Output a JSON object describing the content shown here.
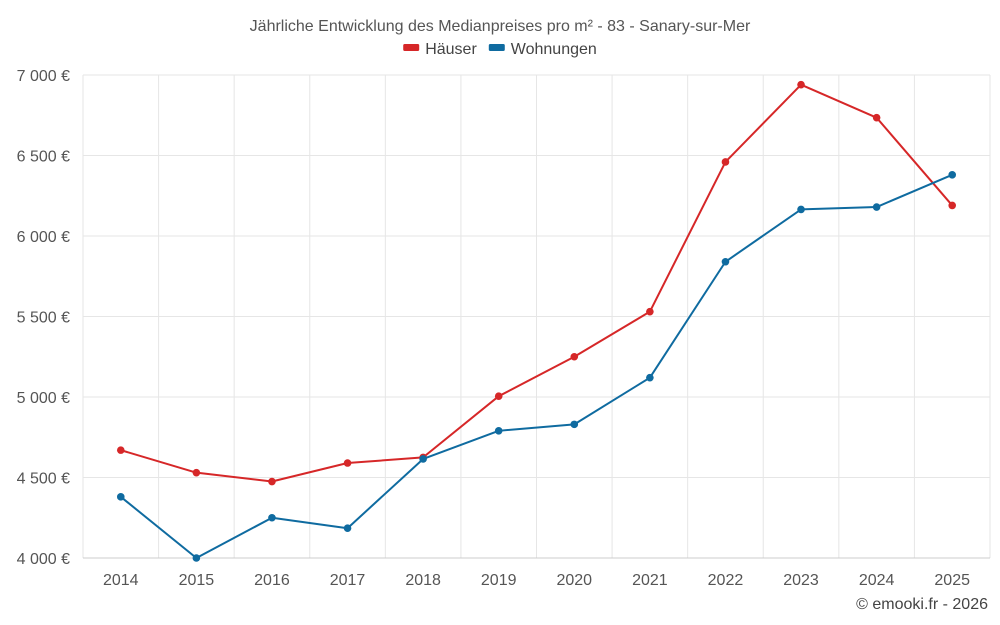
{
  "chart_data": {
    "type": "line",
    "title": "Jährliche Entwicklung des Medianpreises pro m² - 83 - Sanary-sur-Mer",
    "xlabel": "",
    "ylabel": "",
    "categories": [
      "2014",
      "2015",
      "2016",
      "2017",
      "2018",
      "2019",
      "2020",
      "2021",
      "2022",
      "2023",
      "2024",
      "2025"
    ],
    "ylim": [
      4000,
      7000
    ],
    "yticks": [
      4000,
      4500,
      5000,
      5500,
      6000,
      6500,
      7000
    ],
    "ytick_labels": [
      "4 000 €",
      "4 500 €",
      "5 000 €",
      "5 500 €",
      "6 000 €",
      "6 500 €",
      "7 000 €"
    ],
    "grid": true,
    "legend_position": "top-center",
    "series": [
      {
        "name": "Häuser",
        "color": "#d62728",
        "values": [
          4670,
          4530,
          4475,
          4590,
          4625,
          5005,
          5250,
          5530,
          6460,
          6940,
          6735,
          6190
        ]
      },
      {
        "name": "Wohnungen",
        "color": "#0f6ba0",
        "values": [
          4380,
          4000,
          4250,
          4185,
          4615,
          4790,
          4830,
          5120,
          5840,
          6165,
          6180,
          6380
        ]
      }
    ]
  },
  "credit": "© emooki.fr - 2026"
}
